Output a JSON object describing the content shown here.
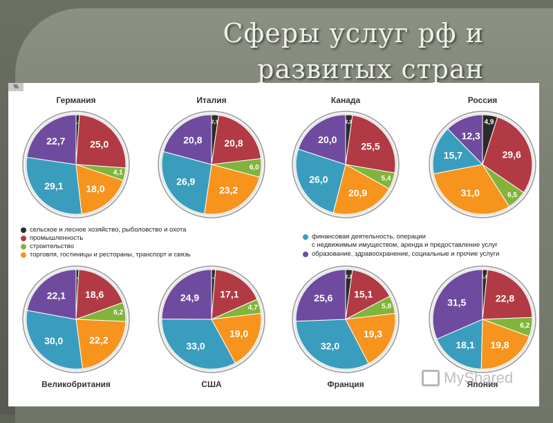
{
  "slide": {
    "title": "Сферы услуг рф и развитых стран"
  },
  "figure": {
    "unit_label": "%"
  },
  "colors": {
    "agriculture": "#2b2b2b",
    "industry": "#b13a44",
    "construction": "#82b43c",
    "trade": "#f7941d",
    "finance": "#3a9dbd",
    "education": "#6e4b9e"
  },
  "legend": {
    "left": [
      {
        "key": "agriculture",
        "label": "сельское и лесное хозяйство, рыболовство и охота"
      },
      {
        "key": "industry",
        "label": "промышленность"
      },
      {
        "key": "construction",
        "label": "строительство"
      },
      {
        "key": "trade",
        "label": "торговля, гостиницы и рестораны, транспорт и связь"
      }
    ],
    "right": [
      {
        "key": "finance",
        "label": "финансовая деятельность, операции",
        "label2": "с недвижимым имуществом, аренда и предоставление услуг"
      },
      {
        "key": "education",
        "label": "образование, здравоохранение, социальные и прочие услуги"
      }
    ]
  },
  "watermark": {
    "text": "MyShared"
  },
  "chart_data": [
    {
      "type": "pie",
      "title": "Германия",
      "categories": [
        "agriculture",
        "industry",
        "construction",
        "trade",
        "finance",
        "education"
      ],
      "values": [
        1.1,
        25.0,
        4.1,
        18.0,
        29.1,
        22.7
      ],
      "labels": [
        "1,1",
        "25,0",
        "4,1",
        "18,0",
        "29,1",
        "22,7"
      ]
    },
    {
      "type": "pie",
      "title": "Италия",
      "categories": [
        "agriculture",
        "industry",
        "construction",
        "trade",
        "finance",
        "education"
      ],
      "values": [
        2.3,
        20.8,
        6.0,
        23.2,
        26.9,
        20.8
      ],
      "labels": [
        "2,3",
        "20,8",
        "6,0",
        "23,2",
        "26,9",
        "20,8"
      ]
    },
    {
      "type": "pie",
      "title": "Канада",
      "categories": [
        "agriculture",
        "industry",
        "construction",
        "trade",
        "finance",
        "education"
      ],
      "values": [
        2.2,
        25.5,
        5.4,
        20.9,
        26.0,
        20.0
      ],
      "labels": [
        "2,2",
        "25,5",
        "5,4",
        "20,9",
        "26,0",
        "20,0"
      ]
    },
    {
      "type": "pie",
      "title": "Россия",
      "categories": [
        "agriculture",
        "industry",
        "construction",
        "trade",
        "finance",
        "education"
      ],
      "values": [
        4.9,
        29.6,
        6.5,
        31.0,
        15.7,
        12.3
      ],
      "labels": [
        "4,9",
        "29,6",
        "6,5",
        "31,0",
        "15,7",
        "12,3"
      ]
    },
    {
      "type": "pie",
      "title": "Великобритания",
      "categories": [
        "agriculture",
        "industry",
        "construction",
        "trade",
        "finance",
        "education"
      ],
      "values": [
        0.9,
        18.6,
        6.2,
        22.2,
        30.0,
        22.1
      ],
      "labels": [
        "0,9",
        "18,6",
        "6,2",
        "22,2",
        "30,0",
        "22,1"
      ]
    },
    {
      "type": "pie",
      "title": "США",
      "categories": [
        "agriculture",
        "industry",
        "construction",
        "trade",
        "finance",
        "education"
      ],
      "values": [
        1.3,
        17.1,
        4.7,
        19.0,
        33.0,
        24.9
      ],
      "labels": [
        "1,3",
        "17,1",
        "4,7",
        "19,0",
        "33,0",
        "24,9"
      ]
    },
    {
      "type": "pie",
      "title": "Франция",
      "categories": [
        "agriculture",
        "industry",
        "construction",
        "trade",
        "finance",
        "education"
      ],
      "values": [
        2.2,
        15.1,
        5.8,
        19.3,
        32.0,
        25.6
      ],
      "labels": [
        "2,2",
        "15,1",
        "5,8",
        "19,3",
        "32,0",
        "25,6"
      ]
    },
    {
      "type": "pie",
      "title": "Япония",
      "categories": [
        "agriculture",
        "industry",
        "construction",
        "trade",
        "finance",
        "education"
      ],
      "values": [
        1.6,
        22.8,
        6.2,
        19.8,
        18.1,
        31.5
      ],
      "labels": [
        "1,6",
        "22,8",
        "6,2",
        "19,8",
        "18,1",
        "31,5"
      ]
    }
  ]
}
